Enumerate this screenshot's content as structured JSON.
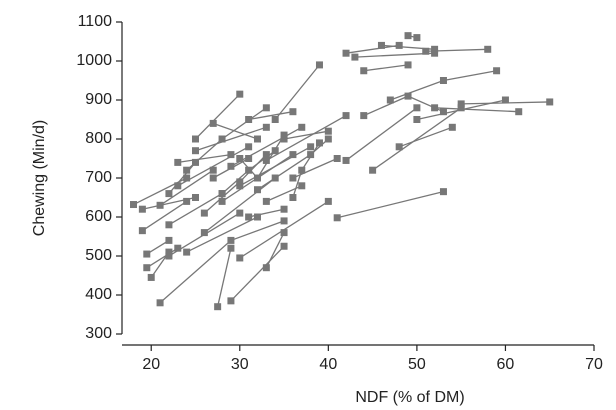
{
  "chart_data": {
    "type": "line",
    "x_label": "NDF (% of DM)",
    "y_label": "Chewing (Min/d)",
    "color": "#777777",
    "marker": "square",
    "xlim": [
      16.7,
      70
    ],
    "ylim": [
      300,
      1100
    ],
    "xticks": [
      20,
      30,
      40,
      50,
      60,
      70
    ],
    "yticks": [
      300,
      400,
      500,
      600,
      700,
      800,
      900,
      1000,
      1100
    ],
    "series": [
      {
        "x": [
          18,
          24
        ],
        "values": [
          632,
          700
        ]
      },
      {
        "x": [
          19,
          25
        ],
        "values": [
          620,
          650
        ]
      },
      {
        "x": [
          19,
          24
        ],
        "values": [
          565,
          640
        ]
      },
      {
        "x": [
          19.5,
          22
        ],
        "values": [
          505,
          540
        ]
      },
      {
        "x": [
          19.5,
          23
        ],
        "values": [
          470,
          520
        ]
      },
      {
        "x": [
          20,
          22
        ],
        "values": [
          445,
          510
        ]
      },
      {
        "x": [
          21,
          29,
          35
        ],
        "values": [
          380,
          540,
          590
        ]
      },
      {
        "x": [
          21,
          27
        ],
        "values": [
          630,
          720
        ]
      },
      {
        "x": [
          22,
          28
        ],
        "values": [
          580,
          660
        ]
      },
      {
        "x": [
          22,
          30
        ],
        "values": [
          500,
          610
        ]
      },
      {
        "x": [
          23,
          29
        ],
        "values": [
          740,
          760
        ]
      },
      {
        "x": [
          23,
          31
        ],
        "values": [
          680,
          780
        ]
      },
      {
        "x": [
          24,
          32
        ],
        "values": [
          510,
          600
        ]
      },
      {
        "x": [
          25,
          30
        ],
        "values": [
          800,
          915
        ]
      },
      {
        "x": [
          25,
          33
        ],
        "values": [
          770,
          830
        ]
      },
      {
        "x": [
          26,
          34
        ],
        "values": [
          560,
          700
        ]
      },
      {
        "x": [
          27,
          31
        ],
        "values": [
          700,
          750
        ]
      },
      {
        "x": [
          27.5,
          29
        ],
        "values": [
          370,
          520
        ]
      },
      {
        "x": [
          28,
          36
        ],
        "values": [
          640,
          760
        ]
      },
      {
        "x": [
          29,
          35
        ],
        "values": [
          385,
          525
        ]
      },
      {
        "x": [
          29,
          37
        ],
        "values": [
          730,
          830
        ]
      },
      {
        "x": [
          30,
          40
        ],
        "values": [
          495,
          640
        ]
      },
      {
        "x": [
          30,
          38
        ],
        "values": [
          680,
          780
        ]
      },
      {
        "x": [
          31,
          35
        ],
        "values": [
          600,
          620
        ]
      },
      {
        "x": [
          32,
          38,
          40
        ],
        "values": [
          670,
          760,
          800
        ]
      },
      {
        "x": [
          33,
          35
        ],
        "values": [
          470,
          560
        ]
      },
      {
        "x": [
          33,
          42
        ],
        "values": [
          745,
          860
        ]
      },
      {
        "x": [
          34,
          39
        ],
        "values": [
          850,
          990
        ]
      },
      {
        "x": [
          35,
          40
        ],
        "values": [
          800,
          820
        ]
      },
      {
        "x": [
          36,
          41
        ],
        "values": [
          700,
          750
        ]
      },
      {
        "x": [
          36,
          37,
          39
        ],
        "values": [
          650,
          720,
          790
        ]
      },
      {
        "x": [
          41,
          53
        ],
        "values": [
          598,
          665
        ]
      },
      {
        "x": [
          42,
          50
        ],
        "values": [
          745,
          880
        ]
      },
      {
        "x": [
          42,
          48
        ],
        "values": [
          1020,
          1040
        ]
      },
      {
        "x": [
          43,
          52
        ],
        "values": [
          1010,
          1020
        ]
      },
      {
        "x": [
          44,
          49
        ],
        "values": [
          975,
          990
        ]
      },
      {
        "x": [
          45,
          55
        ],
        "values": [
          720,
          880
        ]
      },
      {
        "x": [
          46,
          52
        ],
        "values": [
          1040,
          1030
        ]
      },
      {
        "x": [
          47,
          53,
          59
        ],
        "values": [
          900,
          950,
          975
        ]
      },
      {
        "x": [
          48,
          54
        ],
        "values": [
          780,
          830
        ]
      },
      {
        "x": [
          49,
          50
        ],
        "values": [
          1065,
          1060
        ]
      },
      {
        "x": [
          50,
          60
        ],
        "values": [
          850,
          900
        ]
      },
      {
        "x": [
          55,
          65
        ],
        "values": [
          890,
          895
        ]
      },
      {
        "x": [
          51,
          58
        ],
        "values": [
          1025,
          1030
        ]
      },
      {
        "x": [
          52,
          61.5
        ],
        "values": [
          880,
          870
        ]
      },
      {
        "x": [
          44,
          49,
          53
        ],
        "values": [
          860,
          910,
          870
        ]
      },
      {
        "x": [
          24,
          28,
          33
        ],
        "values": [
          720,
          800,
          880
        ]
      },
      {
        "x": [
          26,
          30,
          33
        ],
        "values": [
          610,
          690,
          760
        ]
      },
      {
        "x": [
          28,
          31,
          34
        ],
        "values": [
          660,
          720,
          770
        ]
      },
      {
        "x": [
          30,
          32,
          35
        ],
        "values": [
          750,
          700,
          810
        ]
      },
      {
        "x": [
          31,
          36
        ],
        "values": [
          850,
          870
        ]
      },
      {
        "x": [
          33,
          37
        ],
        "values": [
          640,
          680
        ]
      },
      {
        "x": [
          22,
          25
        ],
        "values": [
          660,
          740
        ]
      },
      {
        "x": [
          27,
          32
        ],
        "values": [
          840,
          800
        ]
      }
    ]
  }
}
